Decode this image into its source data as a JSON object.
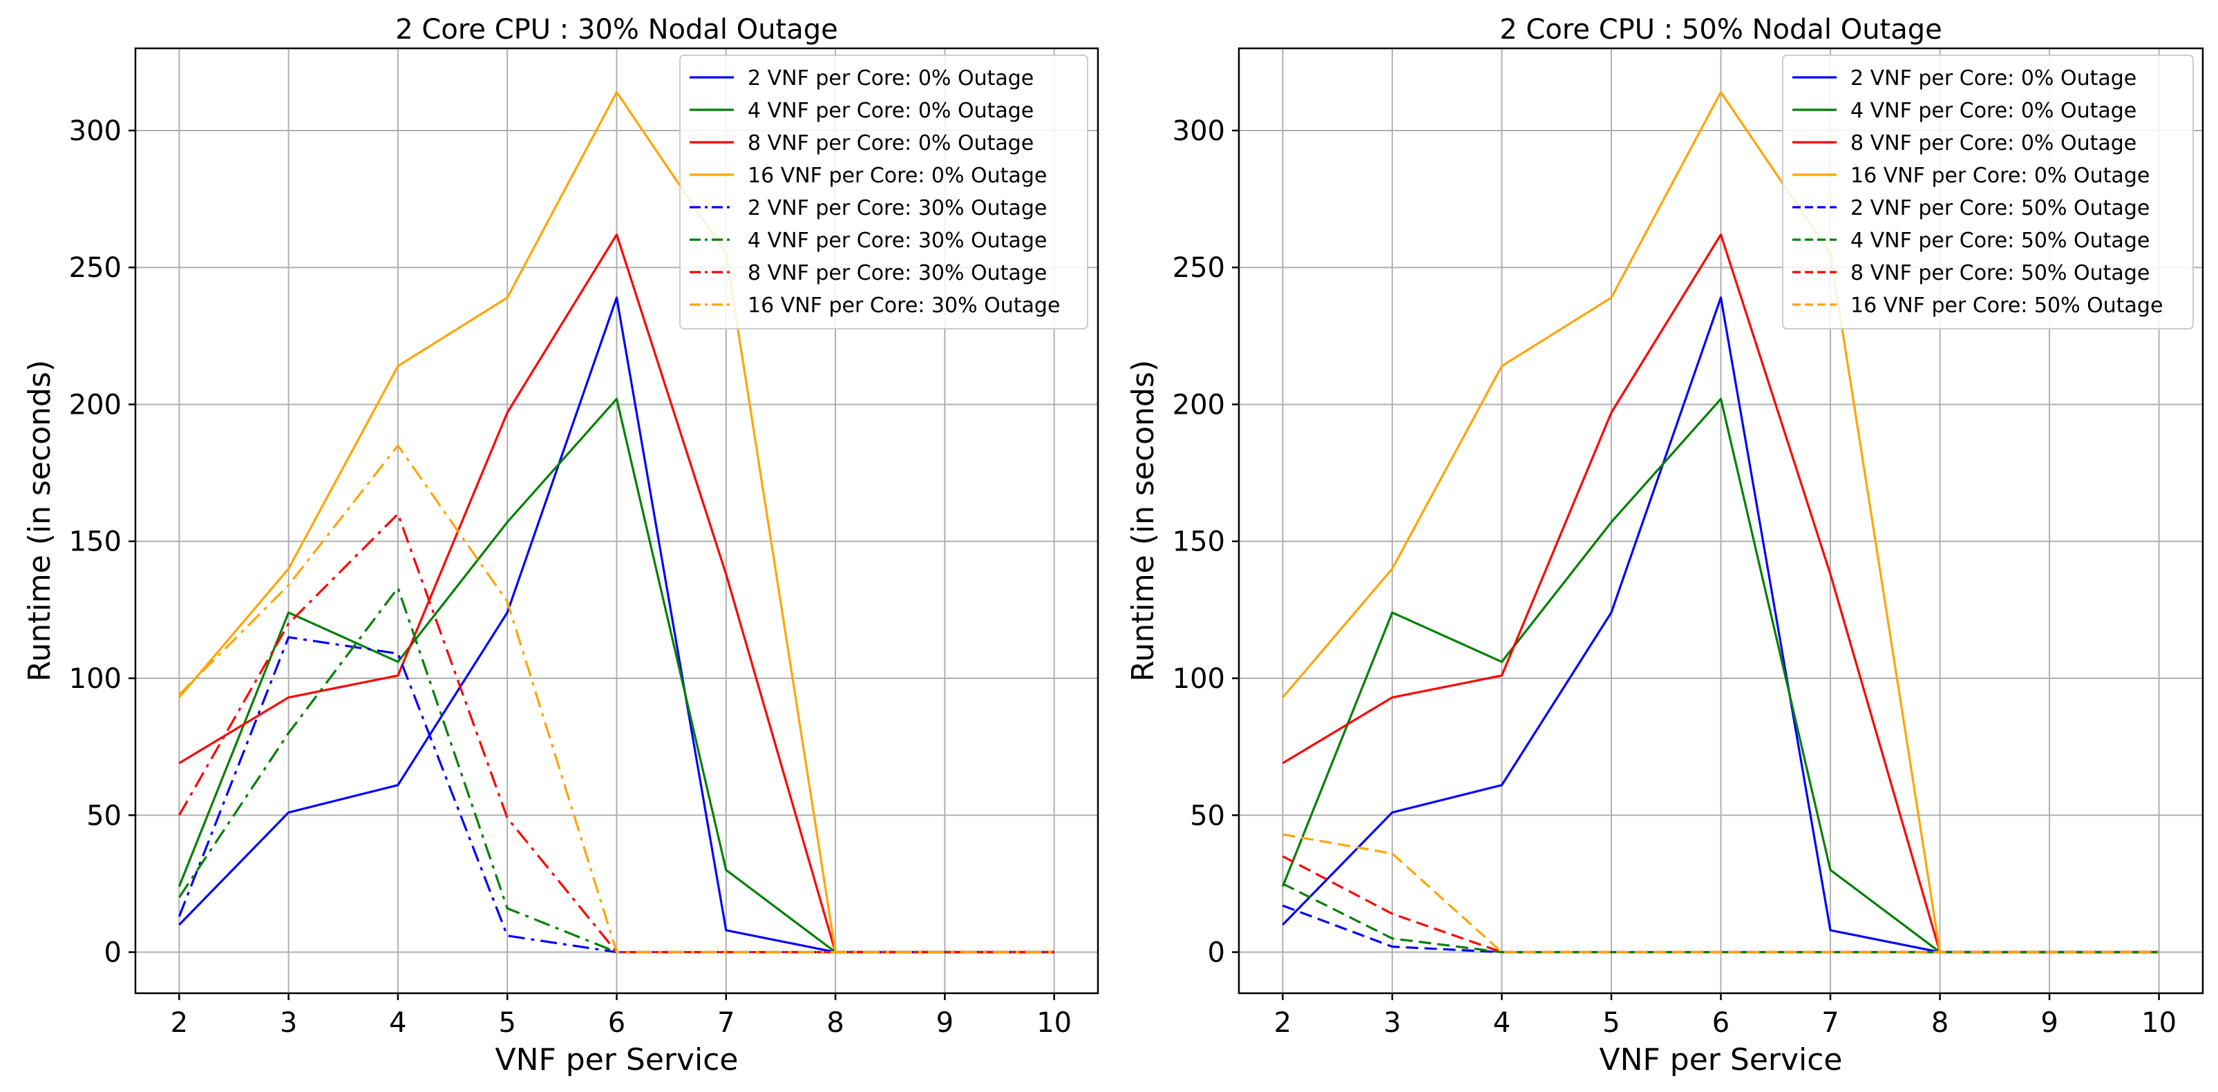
{
  "chart_data": [
    {
      "type": "line",
      "title": "2 Core CPU : 30% Nodal Outage",
      "xlabel": "VNF per Service",
      "ylabel": "Runtime (in seconds)",
      "x": [
        2,
        3,
        4,
        5,
        6,
        7,
        8,
        9,
        10
      ],
      "xlim": [
        1.6,
        10.4
      ],
      "ylim": [
        -15,
        330
      ],
      "xticks": [
        2,
        3,
        4,
        5,
        6,
        7,
        8,
        9,
        10
      ],
      "yticks": [
        0,
        50,
        100,
        150,
        200,
        250,
        300
      ],
      "grid": true,
      "legend_position": "top-right",
      "series": [
        {
          "name": "2 VNF per Core: 0% Outage",
          "color": "#0000ff",
          "dash": "solid",
          "values": [
            10,
            51,
            61,
            124,
            239,
            8,
            0,
            0,
            0
          ]
        },
        {
          "name": "4 VNF per Core: 0% Outage",
          "color": "#008000",
          "dash": "solid",
          "values": [
            24,
            124,
            106,
            157,
            202,
            30,
            0,
            0,
            0
          ]
        },
        {
          "name": "8 VNF per Core: 0% Outage",
          "color": "#ff0000",
          "dash": "solid",
          "values": [
            69,
            93,
            101,
            197,
            262,
            138,
            0,
            0,
            0
          ]
        },
        {
          "name": "16 VNF per Core: 0% Outage",
          "color": "#ffa500",
          "dash": "solid",
          "values": [
            93,
            140,
            214,
            239,
            314,
            255,
            0,
            0,
            0
          ]
        },
        {
          "name": "2 VNF per Core: 30% Outage",
          "color": "#0000ff",
          "dash": "dashdot",
          "values": [
            13,
            115,
            109,
            6,
            0,
            0,
            0,
            0,
            0
          ]
        },
        {
          "name": "4 VNF per Core: 30% Outage",
          "color": "#008000",
          "dash": "dashdot",
          "values": [
            20,
            80,
            133,
            16,
            0,
            0,
            0,
            0,
            0
          ]
        },
        {
          "name": "8 VNF per Core: 30% Outage",
          "color": "#ff0000",
          "dash": "dashdot",
          "values": [
            50,
            120,
            160,
            49,
            0,
            0,
            0,
            0,
            0
          ]
        },
        {
          "name": "16 VNF per Core: 30% Outage",
          "color": "#ffa500",
          "dash": "dashdot",
          "values": [
            94,
            134,
            185,
            128,
            0,
            0,
            0,
            0,
            0
          ]
        }
      ]
    },
    {
      "type": "line",
      "title": "2 Core CPU : 50% Nodal Outage",
      "xlabel": "VNF per Service",
      "ylabel": "Runtime (in seconds)",
      "x": [
        2,
        3,
        4,
        5,
        6,
        7,
        8,
        9,
        10
      ],
      "xlim": [
        1.6,
        10.4
      ],
      "ylim": [
        -15,
        330
      ],
      "xticks": [
        2,
        3,
        4,
        5,
        6,
        7,
        8,
        9,
        10
      ],
      "yticks": [
        0,
        50,
        100,
        150,
        200,
        250,
        300
      ],
      "grid": true,
      "legend_position": "top-right",
      "series": [
        {
          "name": "2 VNF per Core: 0% Outage",
          "color": "#0000ff",
          "dash": "solid",
          "values": [
            10,
            51,
            61,
            124,
            239,
            8,
            0,
            0,
            0
          ]
        },
        {
          "name": "4 VNF per Core: 0% Outage",
          "color": "#008000",
          "dash": "solid",
          "values": [
            24,
            124,
            106,
            157,
            202,
            30,
            0,
            0,
            0
          ]
        },
        {
          "name": "8 VNF per Core: 0% Outage",
          "color": "#ff0000",
          "dash": "solid",
          "values": [
            69,
            93,
            101,
            197,
            262,
            138,
            0,
            0,
            0
          ]
        },
        {
          "name": "16 VNF per Core: 0% Outage",
          "color": "#ffa500",
          "dash": "solid",
          "values": [
            93,
            140,
            214,
            239,
            314,
            255,
            0,
            0,
            0
          ]
        },
        {
          "name": "2 VNF per Core: 50% Outage",
          "color": "#0000ff",
          "dash": "dashed",
          "values": [
            17,
            2,
            0,
            0,
            0,
            0,
            0,
            0,
            0
          ]
        },
        {
          "name": "4 VNF per Core: 50% Outage",
          "color": "#008000",
          "dash": "dashed",
          "values": [
            25,
            5,
            0,
            0,
            0,
            0,
            0,
            0,
            0
          ]
        },
        {
          "name": "8 VNF per Core: 50% Outage",
          "color": "#ff0000",
          "dash": "dashed",
          "values": [
            35,
            14,
            0,
            0,
            0,
            0,
            0,
            0,
            0
          ]
        },
        {
          "name": "16 VNF per Core: 50% Outage",
          "color": "#ffa500",
          "dash": "dashed",
          "values": [
            43,
            36,
            0,
            0,
            0,
            0,
            0,
            0,
            0
          ]
        }
      ]
    }
  ]
}
